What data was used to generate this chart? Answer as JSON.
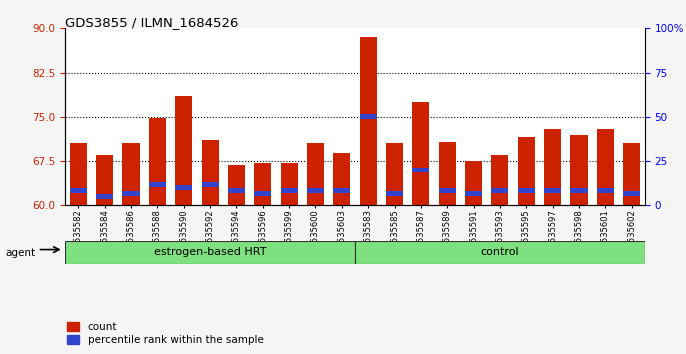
{
  "title": "GDS3855 / ILMN_1684526",
  "samples": [
    "GSM535582",
    "GSM535584",
    "GSM535586",
    "GSM535588",
    "GSM535590",
    "GSM535592",
    "GSM535594",
    "GSM535596",
    "GSM535599",
    "GSM535600",
    "GSM535603",
    "GSM535583",
    "GSM535585",
    "GSM535587",
    "GSM535589",
    "GSM535591",
    "GSM535593",
    "GSM535595",
    "GSM535597",
    "GSM535598",
    "GSM535601",
    "GSM535602"
  ],
  "count_values": [
    70.5,
    68.5,
    70.5,
    74.8,
    78.5,
    71.0,
    66.8,
    67.2,
    67.2,
    70.5,
    68.8,
    88.5,
    70.5,
    77.5,
    70.8,
    67.5,
    68.5,
    71.5,
    73.0,
    72.0,
    73.0,
    70.5
  ],
  "percentile_values": [
    62.5,
    61.5,
    62.0,
    63.5,
    63.0,
    63.5,
    62.5,
    62.0,
    62.5,
    62.5,
    62.5,
    75.0,
    62.0,
    66.0,
    62.5,
    62.0,
    62.5,
    62.5,
    62.5,
    62.5,
    62.5,
    62.0
  ],
  "group_labels": [
    "estrogen-based HRT",
    "control"
  ],
  "group_sizes": [
    11,
    11
  ],
  "bar_color": "#CC2200",
  "blue_color": "#3344CC",
  "ylim_left": [
    60,
    90
  ],
  "ylim_right": [
    0,
    100
  ],
  "yticks_left": [
    60,
    67.5,
    75,
    82.5,
    90
  ],
  "yticks_right": [
    0,
    25,
    50,
    75,
    100
  ],
  "ytick_labels_right": [
    "0",
    "25",
    "50",
    "75",
    "100%"
  ],
  "grid_values": [
    67.5,
    75,
    82.5
  ],
  "bar_width": 0.65
}
